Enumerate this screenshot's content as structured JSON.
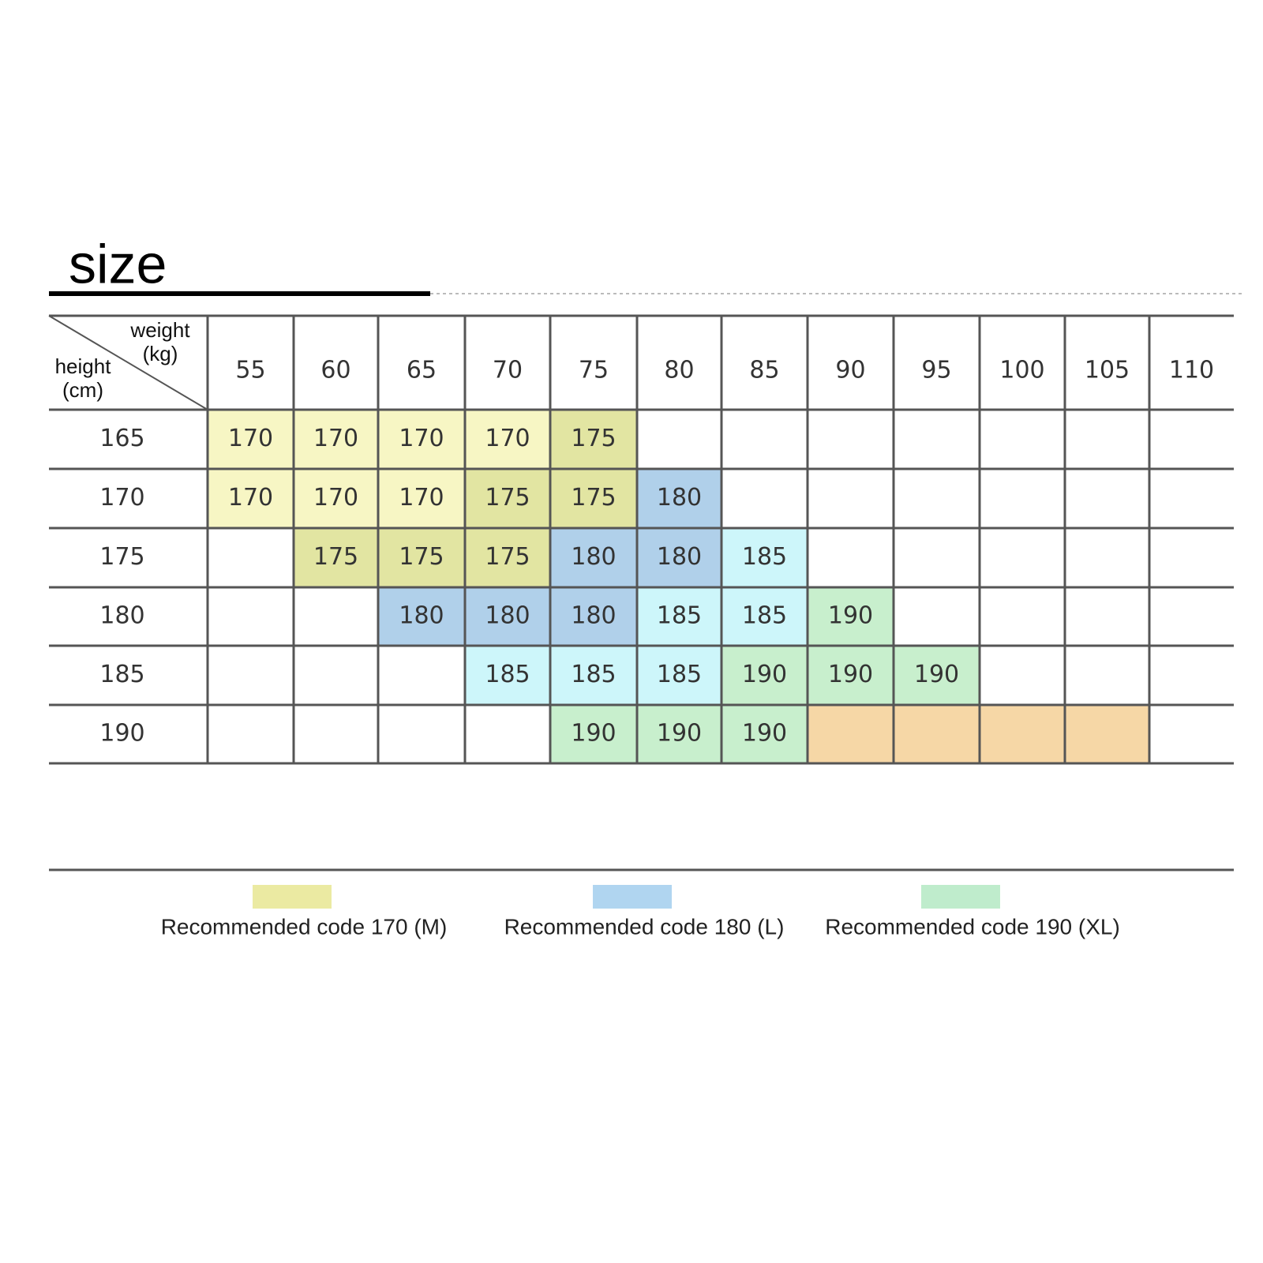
{
  "title": "size",
  "table": {
    "corner": {
      "top": [
        "weight",
        "(kg)"
      ],
      "bottom": [
        "height",
        "(cm)"
      ]
    },
    "columns": [
      55,
      60,
      65,
      70,
      75,
      80,
      85,
      90,
      95,
      100,
      105,
      110
    ],
    "rows": [
      {
        "height": 165,
        "cells": [
          170,
          170,
          170,
          170,
          175,
          null,
          null,
          null,
          null,
          null,
          null,
          null
        ],
        "colors": [
          "#f7f6c4",
          "#f7f6c4",
          "#f7f6c4",
          "#f7f6c4",
          "#e2e5a2",
          null,
          null,
          null,
          null,
          null,
          null,
          null
        ]
      },
      {
        "height": 170,
        "cells": [
          170,
          170,
          170,
          175,
          175,
          180,
          null,
          null,
          null,
          null,
          null,
          null
        ],
        "colors": [
          "#f7f6c4",
          "#f7f6c4",
          "#f7f6c4",
          "#e2e5a2",
          "#e2e5a2",
          "#b0d0ea",
          null,
          null,
          null,
          null,
          null,
          null
        ]
      },
      {
        "height": 175,
        "cells": [
          null,
          175,
          175,
          175,
          180,
          180,
          185,
          null,
          null,
          null,
          null,
          null
        ],
        "colors": [
          null,
          "#e2e5a2",
          "#e2e5a2",
          "#e2e5a2",
          "#b0d0ea",
          "#b0d0ea",
          "#cdf6fa",
          null,
          null,
          null,
          null,
          null
        ]
      },
      {
        "height": 180,
        "cells": [
          null,
          null,
          180,
          180,
          180,
          185,
          185,
          190,
          null,
          null,
          null,
          null
        ],
        "colors": [
          null,
          null,
          "#b0d0ea",
          "#b0d0ea",
          "#b0d0ea",
          "#cdf6fa",
          "#cdf6fa",
          "#c8efcd",
          null,
          null,
          null,
          null
        ]
      },
      {
        "height": 185,
        "cells": [
          null,
          null,
          null,
          185,
          185,
          185,
          190,
          190,
          190,
          null,
          null,
          null
        ],
        "colors": [
          null,
          null,
          null,
          "#cdf6fa",
          "#cdf6fa",
          "#cdf6fa",
          "#c8efcd",
          "#c8efcd",
          "#c8efcd",
          null,
          null,
          null
        ]
      },
      {
        "height": 190,
        "cells": [
          null,
          null,
          null,
          null,
          190,
          190,
          190,
          null,
          null,
          null,
          null,
          null
        ],
        "colors": [
          null,
          null,
          null,
          null,
          "#c8efcd",
          "#c8efcd",
          "#c8efcd",
          "#f6d7a6",
          "#f6d7a6",
          "#f6d7a6",
          "#f6d7a6",
          null
        ]
      }
    ]
  },
  "legend": [
    {
      "label": "Recommended code 170 (M)",
      "color": "#ebeaa2"
    },
    {
      "label": "Recommended code 180 (L)",
      "color": "#b0d5f0"
    },
    {
      "label": "Recommended code 190 (XL)",
      "color": "#bfeccc"
    }
  ]
}
